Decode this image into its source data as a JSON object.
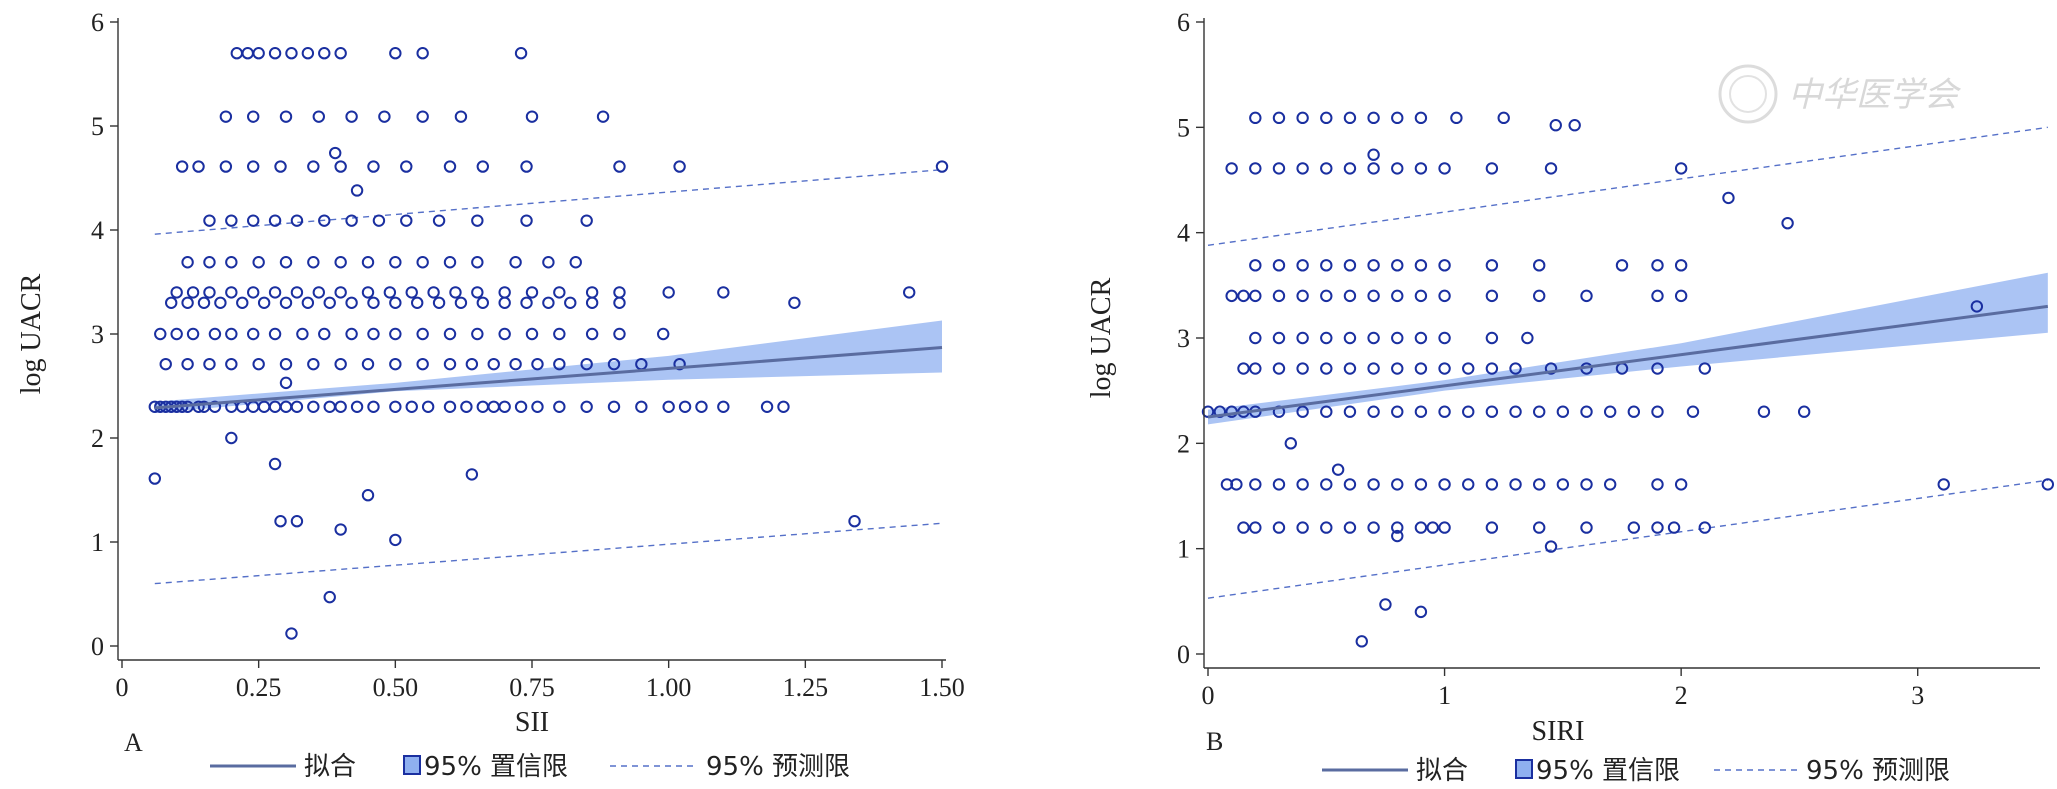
{
  "watermark": "中华医学会",
  "legend_labels": {
    "fit": "拟合",
    "ci": "95% 置信限",
    "pi": "95% 预测限"
  },
  "colors": {
    "points": "#1a2fa0",
    "fit": "#5a6ca0",
    "ci_fill": "#8fb0f0",
    "pi_line": "#5570c8",
    "axis": "#333333"
  },
  "chart_data": [
    {
      "type": "scatter",
      "panel_label": "A",
      "xlabel": "SII",
      "ylabel": "log UACR",
      "xlim": [
        0,
        1.5
      ],
      "ylim": [
        0,
        6
      ],
      "xticks": [
        0,
        0.25,
        0.5,
        0.75,
        1.0,
        1.25,
        1.5
      ],
      "xtick_labels": [
        "0",
        "0.25",
        "0.50",
        "0.75",
        "1.00",
        "1.25",
        "1.50"
      ],
      "yticks": [
        0,
        1,
        2,
        3,
        4,
        5,
        6
      ],
      "ytick_labels": [
        "0",
        "1",
        "2",
        "3",
        "4",
        "5",
        "6"
      ],
      "fit_line": {
        "x": [
          0.06,
          1.5
        ],
        "y": [
          2.29,
          2.87
        ]
      },
      "ci_band": {
        "x": [
          0.06,
          0.5,
          1.0,
          1.5
        ],
        "lower": [
          2.24,
          2.45,
          2.56,
          2.63
        ],
        "upper": [
          2.35,
          2.53,
          2.79,
          3.13
        ]
      },
      "prediction_upper": {
        "x": [
          0.06,
          1.5
        ],
        "y": [
          3.96,
          4.58
        ]
      },
      "prediction_lower": {
        "x": [
          0.06,
          1.5
        ],
        "y": [
          0.6,
          1.18
        ]
      },
      "x": [
        0.06,
        0.06,
        0.07,
        0.08,
        0.09,
        0.1,
        0.11,
        0.12,
        0.14,
        0.15,
        0.17,
        0.2,
        0.22,
        0.24,
        0.26,
        0.28,
        0.3,
        0.32,
        0.35,
        0.38,
        0.4,
        0.43,
        0.46,
        0.5,
        0.53,
        0.56,
        0.6,
        0.63,
        0.66,
        0.68,
        0.7,
        0.73,
        0.76,
        0.8,
        0.85,
        0.9,
        0.95,
        1.0,
        1.03,
        1.06,
        1.1,
        1.18,
        1.21,
        0.08,
        0.12,
        0.16,
        0.2,
        0.25,
        0.3,
        0.35,
        0.4,
        0.45,
        0.5,
        0.55,
        0.6,
        0.64,
        0.68,
        0.72,
        0.76,
        0.8,
        0.85,
        0.9,
        0.95,
        1.02,
        0.07,
        0.1,
        0.13,
        0.17,
        0.2,
        0.24,
        0.28,
        0.33,
        0.37,
        0.42,
        0.46,
        0.5,
        0.55,
        0.6,
        0.65,
        0.7,
        0.75,
        0.8,
        0.86,
        0.91,
        0.99,
        0.09,
        0.12,
        0.15,
        0.18,
        0.22,
        0.26,
        0.3,
        0.34,
        0.38,
        0.42,
        0.46,
        0.5,
        0.54,
        0.58,
        0.62,
        0.66,
        0.7,
        0.74,
        0.78,
        0.82,
        0.86,
        0.91,
        0.1,
        0.13,
        0.16,
        0.2,
        0.24,
        0.28,
        0.32,
        0.36,
        0.4,
        0.45,
        0.49,
        0.53,
        0.57,
        0.61,
        0.65,
        0.7,
        0.75,
        0.8,
        0.86,
        0.91,
        1.0,
        1.1,
        1.44,
        0.12,
        0.16,
        0.2,
        0.25,
        0.3,
        0.35,
        0.4,
        0.45,
        0.5,
        0.55,
        0.6,
        0.65,
        0.72,
        0.78,
        0.83,
        0.16,
        0.2,
        0.24,
        0.28,
        0.32,
        0.37,
        0.42,
        0.47,
        0.52,
        0.58,
        0.65,
        0.74,
        0.85,
        0.11,
        0.14,
        0.19,
        0.24,
        0.29,
        0.35,
        0.4,
        0.46,
        0.52,
        0.6,
        0.66,
        0.74,
        0.91,
        1.02,
        1.5,
        0.19,
        0.24,
        0.3,
        0.36,
        0.42,
        0.48,
        0.55,
        0.62,
        0.75,
        0.88,
        0.21,
        0.23,
        0.25,
        0.28,
        0.31,
        0.34,
        0.37,
        0.4,
        0.5,
        0.55,
        0.73,
        0.2,
        0.28,
        0.3,
        0.32,
        0.45,
        0.4,
        0.5,
        0.31,
        0.29,
        0.64,
        0.38,
        0.43,
        1.34,
        1.23,
        0.39
      ],
      "y": [
        2.3,
        1.61,
        2.3,
        2.3,
        2.3,
        2.3,
        2.3,
        2.3,
        2.3,
        2.3,
        2.3,
        2.3,
        2.3,
        2.3,
        2.3,
        2.3,
        2.3,
        2.3,
        2.3,
        2.3,
        2.3,
        2.3,
        2.3,
        2.3,
        2.3,
        2.3,
        2.3,
        2.3,
        2.3,
        2.3,
        2.3,
        2.3,
        2.3,
        2.3,
        2.3,
        2.3,
        2.3,
        2.3,
        2.3,
        2.3,
        2.3,
        2.3,
        2.3,
        2.71,
        2.71,
        2.71,
        2.71,
        2.71,
        2.71,
        2.71,
        2.71,
        2.71,
        2.71,
        2.71,
        2.71,
        2.71,
        2.71,
        2.71,
        2.71,
        2.71,
        2.71,
        2.71,
        2.71,
        2.71,
        3.0,
        3.0,
        3.0,
        3.0,
        3.0,
        3.0,
        3.0,
        3.0,
        3.0,
        3.0,
        3.0,
        3.0,
        3.0,
        3.0,
        3.0,
        3.0,
        3.0,
        3.0,
        3.0,
        3.0,
        3.0,
        3.3,
        3.3,
        3.3,
        3.3,
        3.3,
        3.3,
        3.3,
        3.3,
        3.3,
        3.3,
        3.3,
        3.3,
        3.3,
        3.3,
        3.3,
        3.3,
        3.3,
        3.3,
        3.3,
        3.3,
        3.3,
        3.3,
        3.4,
        3.4,
        3.4,
        3.4,
        3.4,
        3.4,
        3.4,
        3.4,
        3.4,
        3.4,
        3.4,
        3.4,
        3.4,
        3.4,
        3.4,
        3.4,
        3.4,
        3.4,
        3.4,
        3.4,
        3.4,
        3.4,
        3.4,
        3.69,
        3.69,
        3.69,
        3.69,
        3.69,
        3.69,
        3.69,
        3.69,
        3.69,
        3.69,
        3.69,
        3.69,
        3.69,
        3.69,
        3.69,
        4.09,
        4.09,
        4.09,
        4.09,
        4.09,
        4.09,
        4.09,
        4.09,
        4.09,
        4.09,
        4.09,
        4.09,
        4.09,
        4.61,
        4.61,
        4.61,
        4.61,
        4.61,
        4.61,
        4.61,
        4.61,
        4.61,
        4.61,
        4.61,
        4.61,
        4.61,
        4.61,
        4.61,
        5.09,
        5.09,
        5.09,
        5.09,
        5.09,
        5.09,
        5.09,
        5.09,
        5.09,
        5.09,
        5.7,
        5.7,
        5.7,
        5.7,
        5.7,
        5.7,
        5.7,
        5.7,
        5.7,
        5.7,
        5.7,
        2.0,
        1.75,
        2.53,
        1.2,
        1.45,
        1.12,
        1.02,
        0.12,
        1.2,
        1.65,
        0.47,
        4.38,
        1.2,
        3.3,
        4.74
      ]
    },
    {
      "type": "scatter",
      "panel_label": "B",
      "xlabel": "SIRI",
      "ylabel": "log UACR",
      "xlim": [
        0,
        3.5
      ],
      "ylim": [
        0,
        6
      ],
      "xticks": [
        0,
        1,
        2,
        3
      ],
      "xtick_labels": [
        "0",
        "1",
        "2",
        "3"
      ],
      "yticks": [
        0,
        1,
        2,
        3,
        4,
        5,
        6
      ],
      "ytick_labels": [
        "0",
        "1",
        "2",
        "3",
        "4",
        "5",
        "6"
      ],
      "fit_line": {
        "x": [
          0.0,
          3.55
        ],
        "y": [
          2.25,
          3.3
        ]
      },
      "ci_band": {
        "x": [
          0.0,
          1.0,
          2.0,
          3.55
        ],
        "lower": [
          2.18,
          2.5,
          2.73,
          3.05
        ],
        "upper": [
          2.32,
          2.6,
          2.95,
          3.62
        ]
      },
      "prediction_upper": {
        "x": [
          0.0,
          3.55
        ],
        "y": [
          3.88,
          5.0
        ]
      },
      "prediction_lower": {
        "x": [
          0.0,
          3.55
        ],
        "y": [
          0.53,
          1.65
        ]
      },
      "x": [
        0.0,
        0.05,
        0.1,
        0.15,
        0.2,
        0.3,
        0.4,
        0.5,
        0.6,
        0.7,
        0.8,
        0.9,
        1.0,
        1.1,
        1.2,
        1.3,
        1.4,
        1.5,
        1.6,
        1.7,
        1.8,
        1.9,
        2.05,
        2.35,
        2.52,
        0.08,
        0.12,
        0.2,
        0.3,
        0.4,
        0.5,
        0.6,
        0.7,
        0.8,
        0.9,
        1.0,
        1.1,
        1.2,
        1.3,
        1.4,
        1.5,
        1.6,
        1.7,
        1.9,
        2.0,
        3.55,
        0.15,
        0.2,
        0.3,
        0.4,
        0.5,
        0.6,
        0.7,
        0.8,
        0.9,
        1.0,
        1.2,
        1.4,
        1.6,
        1.8,
        1.9,
        2.1,
        0.15,
        0.2,
        0.3,
        0.4,
        0.5,
        0.6,
        0.7,
        0.8,
        0.9,
        1.0,
        1.1,
        1.2,
        1.3,
        1.45,
        1.6,
        1.75,
        1.9,
        2.1,
        0.2,
        0.3,
        0.4,
        0.5,
        0.6,
        0.7,
        0.8,
        0.9,
        1.0,
        1.2,
        1.35,
        0.1,
        0.15,
        0.2,
        0.3,
        0.4,
        0.5,
        0.6,
        0.7,
        0.8,
        0.9,
        1.0,
        1.2,
        1.4,
        1.6,
        1.9,
        2.0,
        2.45,
        0.2,
        0.3,
        0.4,
        0.5,
        0.6,
        0.7,
        0.8,
        0.9,
        1.0,
        1.2,
        1.4,
        1.75,
        1.9,
        2.0,
        3.25,
        0.1,
        0.2,
        0.3,
        0.4,
        0.5,
        0.6,
        0.7,
        0.8,
        0.9,
        1.0,
        1.2,
        1.45,
        0.2,
        0.3,
        0.4,
        0.5,
        0.6,
        0.7,
        0.8,
        0.9,
        1.05,
        1.25,
        1.47,
        1.55,
        2.0,
        2.2,
        0.35,
        0.55,
        0.65,
        0.75,
        0.9,
        0.7,
        0.95,
        0.8,
        1.45,
        1.97,
        3.11
      ],
      "y": [
        2.3,
        2.3,
        2.3,
        2.3,
        2.3,
        2.3,
        2.3,
        2.3,
        2.3,
        2.3,
        2.3,
        2.3,
        2.3,
        2.3,
        2.3,
        2.3,
        2.3,
        2.3,
        2.3,
        2.3,
        2.3,
        2.3,
        2.3,
        2.3,
        2.3,
        1.61,
        1.61,
        1.61,
        1.61,
        1.61,
        1.61,
        1.61,
        1.61,
        1.61,
        1.61,
        1.61,
        1.61,
        1.61,
        1.61,
        1.61,
        1.61,
        1.61,
        1.61,
        1.61,
        1.61,
        1.61,
        1.2,
        1.2,
        1.2,
        1.2,
        1.2,
        1.2,
        1.2,
        1.2,
        1.2,
        1.2,
        1.2,
        1.2,
        1.2,
        1.2,
        1.2,
        1.2,
        2.71,
        2.71,
        2.71,
        2.71,
        2.71,
        2.71,
        2.71,
        2.71,
        2.71,
        2.71,
        2.71,
        2.71,
        2.71,
        2.71,
        2.71,
        2.71,
        2.71,
        2.71,
        3.0,
        3.0,
        3.0,
        3.0,
        3.0,
        3.0,
        3.0,
        3.0,
        3.0,
        3.0,
        3.0,
        3.4,
        3.4,
        3.4,
        3.4,
        3.4,
        3.4,
        3.4,
        3.4,
        3.4,
        3.4,
        3.4,
        3.4,
        3.4,
        3.4,
        3.4,
        3.4,
        4.09,
        3.69,
        3.69,
        3.69,
        3.69,
        3.69,
        3.69,
        3.69,
        3.69,
        3.69,
        3.69,
        3.69,
        3.69,
        3.69,
        3.69,
        3.3,
        4.61,
        4.61,
        4.61,
        4.61,
        4.61,
        4.61,
        4.61,
        4.61,
        4.61,
        4.61,
        4.61,
        4.61,
        5.09,
        5.09,
        5.09,
        5.09,
        5.09,
        5.09,
        5.09,
        5.09,
        5.09,
        5.09,
        5.02,
        5.02,
        4.61,
        4.33,
        2.0,
        1.75,
        0.12,
        0.47,
        0.4,
        4.74,
        1.2,
        1.12,
        1.02,
        1.2,
        1.61
      ]
    }
  ]
}
